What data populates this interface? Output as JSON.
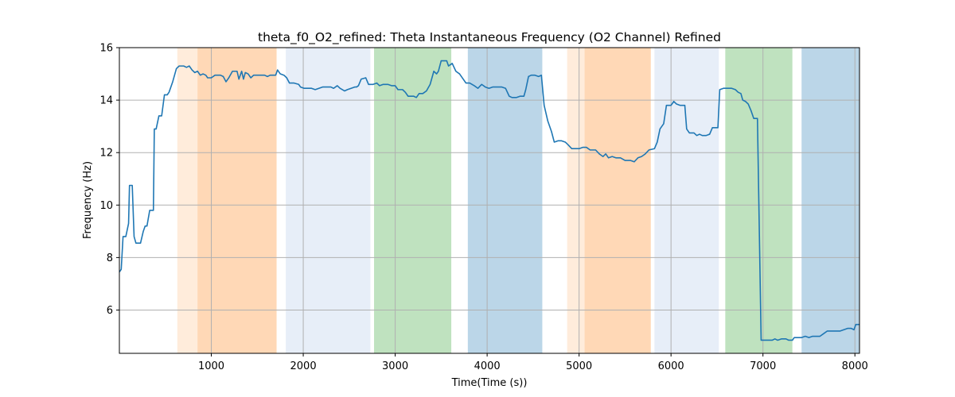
{
  "chart_data": {
    "type": "line",
    "title": "theta_f0_O2_refined: Theta Instantaneous Frequency (O2 Channel) Refined",
    "xlabel": "Time(Time (s))",
    "ylabel": "Frequency (Hz)",
    "xlim": [
      0,
      8050
    ],
    "ylim": [
      4.35,
      16
    ],
    "x_ticks": [
      1000,
      2000,
      3000,
      4000,
      5000,
      6000,
      7000,
      8000
    ],
    "y_ticks": [
      6,
      8,
      10,
      12,
      14,
      16
    ],
    "grid": true,
    "line_color": "#1f77b4",
    "bands": [
      {
        "x0": 630,
        "x1": 850,
        "color": "#ff7f0e",
        "alpha": 0.15
      },
      {
        "x0": 850,
        "x1": 1710,
        "color": "#ff7f0e",
        "alpha": 0.3
      },
      {
        "x0": 1810,
        "x1": 2730,
        "color": "#aec7e8",
        "alpha": 0.3
      },
      {
        "x0": 2770,
        "x1": 3610,
        "color": "#2ca02c",
        "alpha": 0.3
      },
      {
        "x0": 3790,
        "x1": 4600,
        "color": "#1f77b4",
        "alpha": 0.3
      },
      {
        "x0": 4870,
        "x1": 5060,
        "color": "#ff7f0e",
        "alpha": 0.15
      },
      {
        "x0": 5060,
        "x1": 5780,
        "color": "#ff7f0e",
        "alpha": 0.3
      },
      {
        "x0": 5820,
        "x1": 6520,
        "color": "#aec7e8",
        "alpha": 0.3
      },
      {
        "x0": 6590,
        "x1": 7320,
        "color": "#2ca02c",
        "alpha": 0.3
      },
      {
        "x0": 7420,
        "x1": 8050,
        "color": "#1f77b4",
        "alpha": 0.3
      }
    ],
    "series": [
      {
        "points": [
          [
            0,
            7.45
          ],
          [
            20,
            7.55
          ],
          [
            40,
            8.8
          ],
          [
            70,
            8.8
          ],
          [
            100,
            9.3
          ],
          [
            110,
            10.75
          ],
          [
            140,
            10.75
          ],
          [
            160,
            8.8
          ],
          [
            180,
            8.55
          ],
          [
            230,
            8.55
          ],
          [
            260,
            9.0
          ],
          [
            280,
            9.2
          ],
          [
            300,
            9.2
          ],
          [
            330,
            9.8
          ],
          [
            370,
            9.8
          ],
          [
            380,
            12.9
          ],
          [
            400,
            12.9
          ],
          [
            430,
            13.4
          ],
          [
            460,
            13.4
          ],
          [
            490,
            14.2
          ],
          [
            520,
            14.2
          ],
          [
            540,
            14.3
          ],
          [
            580,
            14.7
          ],
          [
            620,
            15.2
          ],
          [
            650,
            15.3
          ],
          [
            700,
            15.3
          ],
          [
            730,
            15.25
          ],
          [
            760,
            15.3
          ],
          [
            790,
            15.15
          ],
          [
            820,
            15.05
          ],
          [
            850,
            15.1
          ],
          [
            880,
            14.95
          ],
          [
            910,
            15.0
          ],
          [
            940,
            14.95
          ],
          [
            960,
            14.85
          ],
          [
            1000,
            14.85
          ],
          [
            1040,
            14.95
          ],
          [
            1100,
            14.95
          ],
          [
            1130,
            14.9
          ],
          [
            1160,
            14.7
          ],
          [
            1190,
            14.85
          ],
          [
            1230,
            15.1
          ],
          [
            1280,
            15.1
          ],
          [
            1300,
            14.8
          ],
          [
            1330,
            15.1
          ],
          [
            1350,
            14.8
          ],
          [
            1370,
            15.05
          ],
          [
            1400,
            15.0
          ],
          [
            1430,
            14.85
          ],
          [
            1460,
            14.95
          ],
          [
            1550,
            14.95
          ],
          [
            1580,
            14.95
          ],
          [
            1610,
            14.9
          ],
          [
            1640,
            14.95
          ],
          [
            1700,
            14.95
          ],
          [
            1720,
            15.15
          ],
          [
            1750,
            15.0
          ],
          [
            1790,
            14.95
          ],
          [
            1820,
            14.85
          ],
          [
            1850,
            14.65
          ],
          [
            1900,
            14.65
          ],
          [
            1950,
            14.6
          ],
          [
            1970,
            14.5
          ],
          [
            2010,
            14.45
          ],
          [
            2060,
            14.45
          ],
          [
            2090,
            14.45
          ],
          [
            2130,
            14.4
          ],
          [
            2170,
            14.45
          ],
          [
            2210,
            14.5
          ],
          [
            2260,
            14.5
          ],
          [
            2300,
            14.5
          ],
          [
            2330,
            14.45
          ],
          [
            2370,
            14.55
          ],
          [
            2400,
            14.45
          ],
          [
            2450,
            14.35
          ],
          [
            2480,
            14.4
          ],
          [
            2520,
            14.45
          ],
          [
            2560,
            14.5
          ],
          [
            2580,
            14.5
          ],
          [
            2600,
            14.55
          ],
          [
            2630,
            14.8
          ],
          [
            2680,
            14.85
          ],
          [
            2710,
            14.6
          ],
          [
            2760,
            14.6
          ],
          [
            2800,
            14.65
          ],
          [
            2830,
            14.55
          ],
          [
            2870,
            14.6
          ],
          [
            2920,
            14.6
          ],
          [
            2960,
            14.55
          ],
          [
            3000,
            14.55
          ],
          [
            3030,
            14.4
          ],
          [
            3080,
            14.4
          ],
          [
            3110,
            14.3
          ],
          [
            3140,
            14.15
          ],
          [
            3200,
            14.15
          ],
          [
            3230,
            14.1
          ],
          [
            3260,
            14.25
          ],
          [
            3300,
            14.25
          ],
          [
            3340,
            14.35
          ],
          [
            3380,
            14.6
          ],
          [
            3420,
            15.1
          ],
          [
            3450,
            15.0
          ],
          [
            3470,
            15.1
          ],
          [
            3500,
            15.5
          ],
          [
            3560,
            15.5
          ],
          [
            3580,
            15.3
          ],
          [
            3620,
            15.4
          ],
          [
            3660,
            15.1
          ],
          [
            3700,
            15.0
          ],
          [
            3740,
            14.8
          ],
          [
            3770,
            14.65
          ],
          [
            3810,
            14.65
          ],
          [
            3860,
            14.55
          ],
          [
            3900,
            14.45
          ],
          [
            3940,
            14.6
          ],
          [
            3980,
            14.5
          ],
          [
            4020,
            14.45
          ],
          [
            4060,
            14.5
          ],
          [
            4120,
            14.5
          ],
          [
            4160,
            14.5
          ],
          [
            4200,
            14.45
          ],
          [
            4240,
            14.15
          ],
          [
            4270,
            14.1
          ],
          [
            4320,
            14.1
          ],
          [
            4360,
            14.15
          ],
          [
            4400,
            14.15
          ],
          [
            4420,
            14.4
          ],
          [
            4450,
            14.9
          ],
          [
            4480,
            14.95
          ],
          [
            4520,
            14.95
          ],
          [
            4560,
            14.9
          ],
          [
            4590,
            14.95
          ],
          [
            4620,
            13.8
          ],
          [
            4660,
            13.2
          ],
          [
            4700,
            12.8
          ],
          [
            4730,
            12.4
          ],
          [
            4770,
            12.45
          ],
          [
            4810,
            12.45
          ],
          [
            4850,
            12.4
          ],
          [
            4880,
            12.3
          ],
          [
            4920,
            12.15
          ],
          [
            4960,
            12.15
          ],
          [
            5000,
            12.15
          ],
          [
            5040,
            12.2
          ],
          [
            5080,
            12.2
          ],
          [
            5120,
            12.1
          ],
          [
            5180,
            12.1
          ],
          [
            5220,
            11.95
          ],
          [
            5260,
            11.85
          ],
          [
            5290,
            11.95
          ],
          [
            5320,
            11.8
          ],
          [
            5360,
            11.85
          ],
          [
            5400,
            11.8
          ],
          [
            5450,
            11.8
          ],
          [
            5500,
            11.7
          ],
          [
            5560,
            11.7
          ],
          [
            5600,
            11.65
          ],
          [
            5640,
            11.8
          ],
          [
            5680,
            11.85
          ],
          [
            5720,
            11.95
          ],
          [
            5760,
            12.1
          ],
          [
            5820,
            12.15
          ],
          [
            5850,
            12.4
          ],
          [
            5880,
            12.9
          ],
          [
            5920,
            13.1
          ],
          [
            5950,
            13.8
          ],
          [
            6000,
            13.8
          ],
          [
            6030,
            13.95
          ],
          [
            6060,
            13.85
          ],
          [
            6100,
            13.8
          ],
          [
            6150,
            13.8
          ],
          [
            6170,
            12.9
          ],
          [
            6200,
            12.75
          ],
          [
            6250,
            12.75
          ],
          [
            6280,
            12.65
          ],
          [
            6310,
            12.7
          ],
          [
            6340,
            12.65
          ],
          [
            6380,
            12.65
          ],
          [
            6420,
            12.7
          ],
          [
            6450,
            12.95
          ],
          [
            6510,
            12.95
          ],
          [
            6530,
            14.4
          ],
          [
            6570,
            14.45
          ],
          [
            6620,
            14.45
          ],
          [
            6660,
            14.45
          ],
          [
            6700,
            14.4
          ],
          [
            6730,
            14.3
          ],
          [
            6760,
            14.25
          ],
          [
            6780,
            14.0
          ],
          [
            6810,
            13.95
          ],
          [
            6840,
            13.85
          ],
          [
            6870,
            13.6
          ],
          [
            6900,
            13.3
          ],
          [
            6940,
            13.3
          ],
          [
            6980,
            4.85
          ],
          [
            7020,
            4.85
          ],
          [
            7060,
            4.85
          ],
          [
            7100,
            4.85
          ],
          [
            7130,
            4.9
          ],
          [
            7160,
            4.85
          ],
          [
            7200,
            4.9
          ],
          [
            7250,
            4.9
          ],
          [
            7280,
            4.85
          ],
          [
            7320,
            4.85
          ],
          [
            7340,
            4.95
          ],
          [
            7380,
            4.95
          ],
          [
            7420,
            4.95
          ],
          [
            7460,
            5.0
          ],
          [
            7500,
            4.95
          ],
          [
            7540,
            5.0
          ],
          [
            7580,
            5.0
          ],
          [
            7620,
            5.0
          ],
          [
            7660,
            5.1
          ],
          [
            7700,
            5.2
          ],
          [
            7760,
            5.2
          ],
          [
            7800,
            5.2
          ],
          [
            7840,
            5.2
          ],
          [
            7880,
            5.25
          ],
          [
            7920,
            5.3
          ],
          [
            7960,
            5.3
          ],
          [
            7990,
            5.25
          ],
          [
            8010,
            5.45
          ],
          [
            8050,
            5.45
          ]
        ]
      }
    ]
  }
}
